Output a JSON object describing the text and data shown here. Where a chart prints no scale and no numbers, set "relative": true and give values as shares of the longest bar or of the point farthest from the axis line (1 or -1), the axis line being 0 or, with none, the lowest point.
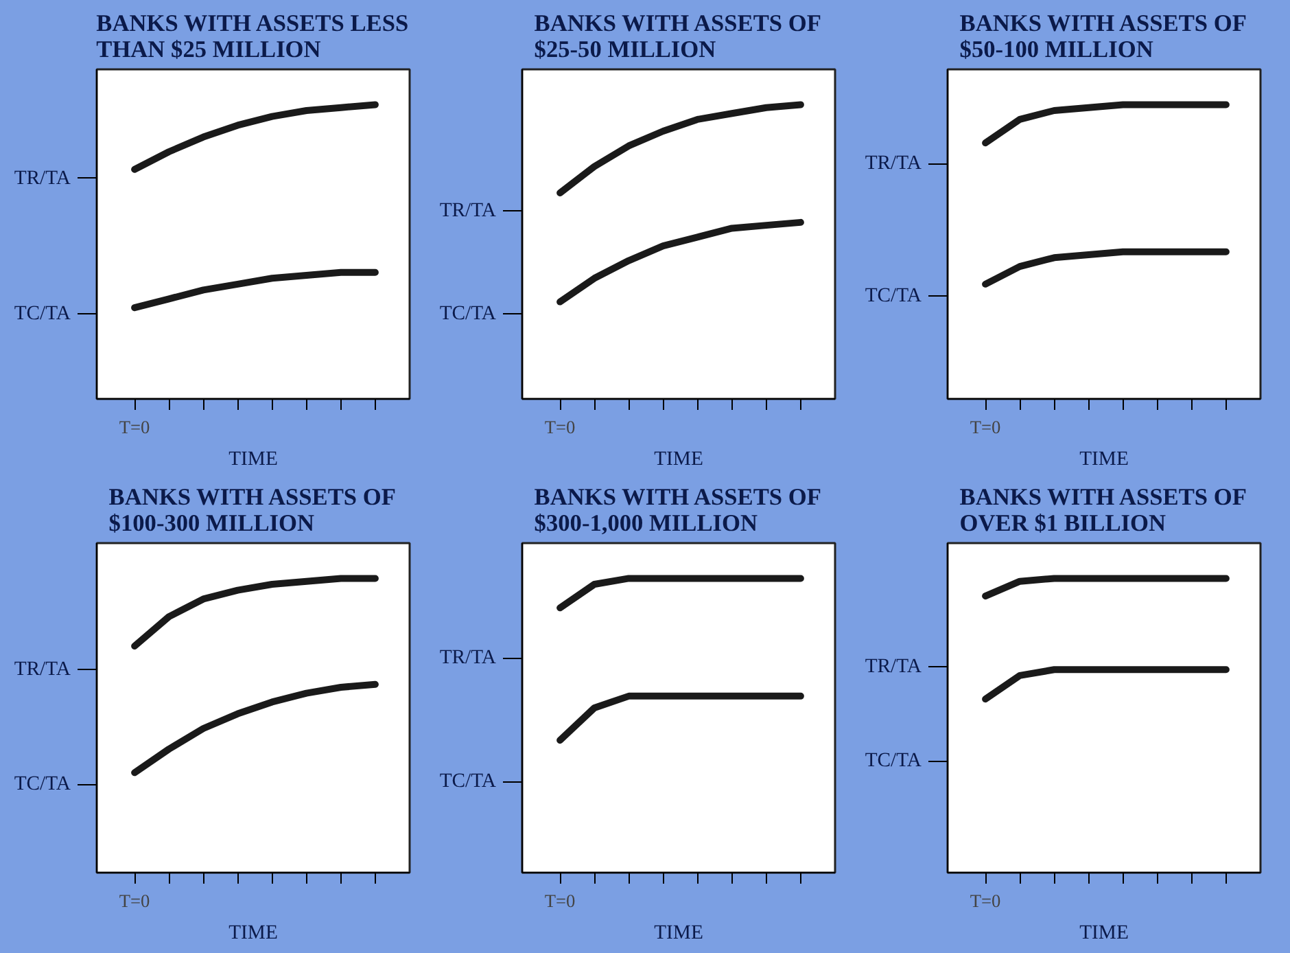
{
  "chart_data": [
    {
      "type": "line",
      "title": "BANKS WITH ASSETS LESS THAN $25 MILLION",
      "xlabel": "TIME",
      "relative": true,
      "annotations": [
        "T=0"
      ],
      "categories": [
        null,
        null,
        null,
        null,
        null,
        null,
        null,
        null
      ],
      "series": [
        {
          "color": "#1a1a1a",
          "values": [
            0.78,
            0.84,
            0.89,
            0.93,
            0.96,
            0.98,
            0.99,
            1.0
          ]
        },
        {
          "color": "#1a1a1a",
          "values": [
            0.31,
            0.34,
            0.37,
            0.39,
            0.41,
            0.42,
            0.43,
            0.43
          ]
        }
      ],
      "ref_lines": [
        {
          "axis": "y",
          "value": 0.75,
          "label": "TR/TA"
        },
        {
          "axis": "y",
          "value": 0.29,
          "label": "TC/TA"
        }
      ]
    },
    {
      "type": "line",
      "title": "BANKS WITH ASSETS OF $25-50 MILLION",
      "xlabel": "TIME",
      "relative": true,
      "annotations": [
        "T=0"
      ],
      "categories": [
        null,
        null,
        null,
        null,
        null,
        null,
        null,
        null
      ],
      "series": [
        {
          "color": "#1a1a1a",
          "values": [
            0.7,
            0.79,
            0.86,
            0.91,
            0.95,
            0.97,
            0.99,
            1.0
          ]
        },
        {
          "color": "#1a1a1a",
          "values": [
            0.33,
            0.41,
            0.47,
            0.52,
            0.55,
            0.58,
            0.59,
            0.6
          ]
        }
      ],
      "ref_lines": [
        {
          "axis": "y",
          "value": 0.64,
          "label": "TR/TA"
        },
        {
          "axis": "y",
          "value": 0.29,
          "label": "TC/TA"
        }
      ]
    },
    {
      "type": "line",
      "title": "BANKS WITH ASSETS OF $50-100 MILLION",
      "xlabel": "TIME",
      "relative": true,
      "annotations": [
        "T=0"
      ],
      "categories": [
        null,
        null,
        null,
        null,
        null,
        null,
        null,
        null
      ],
      "series": [
        {
          "color": "#1a1a1a",
          "values": [
            0.87,
            0.95,
            0.98,
            0.99,
            1.0,
            1.0,
            1.0,
            1.0
          ]
        },
        {
          "color": "#1a1a1a",
          "values": [
            0.39,
            0.45,
            0.48,
            0.49,
            0.5,
            0.5,
            0.5,
            0.5
          ]
        }
      ],
      "ref_lines": [
        {
          "axis": "y",
          "value": 0.8,
          "label": "TR/TA"
        },
        {
          "axis": "y",
          "value": 0.35,
          "label": "TC/TA"
        }
      ]
    },
    {
      "type": "line",
      "title": "BANKS WITH ASSETS OF $100-300 MILLION",
      "xlabel": "TIME",
      "relative": true,
      "annotations": [
        "T=0"
      ],
      "categories": [
        null,
        null,
        null,
        null,
        null,
        null,
        null,
        null
      ],
      "series": [
        {
          "color": "#1a1a1a",
          "values": [
            0.77,
            0.87,
            0.93,
            0.96,
            0.98,
            0.99,
            1.0,
            1.0
          ]
        },
        {
          "color": "#1a1a1a",
          "values": [
            0.34,
            0.42,
            0.49,
            0.54,
            0.58,
            0.61,
            0.63,
            0.64
          ]
        }
      ],
      "ref_lines": [
        {
          "axis": "y",
          "value": 0.69,
          "label": "TR/TA"
        },
        {
          "axis": "y",
          "value": 0.3,
          "label": "TC/TA"
        }
      ]
    },
    {
      "type": "line",
      "title": "BANKS WITH ASSETS OF $300-1,000 MILLION",
      "xlabel": "TIME",
      "relative": true,
      "annotations": [
        "T=0"
      ],
      "categories": [
        null,
        null,
        null,
        null,
        null,
        null,
        null,
        null
      ],
      "series": [
        {
          "color": "#1a1a1a",
          "values": [
            0.9,
            0.98,
            1.0,
            1.0,
            1.0,
            1.0,
            1.0,
            1.0
          ]
        },
        {
          "color": "#1a1a1a",
          "values": [
            0.45,
            0.56,
            0.6,
            0.6,
            0.6,
            0.6,
            0.6,
            0.6
          ]
        }
      ],
      "ref_lines": [
        {
          "axis": "y",
          "value": 0.73,
          "label": "TR/TA"
        },
        {
          "axis": "y",
          "value": 0.31,
          "label": "TC/TA"
        }
      ]
    },
    {
      "type": "line",
      "title": "BANKS WITH ASSETS OF OVER $1 BILLION",
      "xlabel": "TIME",
      "relative": true,
      "annotations": [
        "T=0"
      ],
      "categories": [
        null,
        null,
        null,
        null,
        null,
        null,
        null,
        null
      ],
      "series": [
        {
          "color": "#1a1a1a",
          "values": [
            0.94,
            0.99,
            1.0,
            1.0,
            1.0,
            1.0,
            1.0,
            1.0
          ]
        },
        {
          "color": "#1a1a1a",
          "values": [
            0.59,
            0.67,
            0.69,
            0.69,
            0.69,
            0.69,
            0.69,
            0.69
          ]
        }
      ],
      "ref_lines": [
        {
          "axis": "y",
          "value": 0.7,
          "label": "TR/TA"
        },
        {
          "axis": "y",
          "value": 0.38,
          "label": "TC/TA"
        }
      ]
    }
  ]
}
